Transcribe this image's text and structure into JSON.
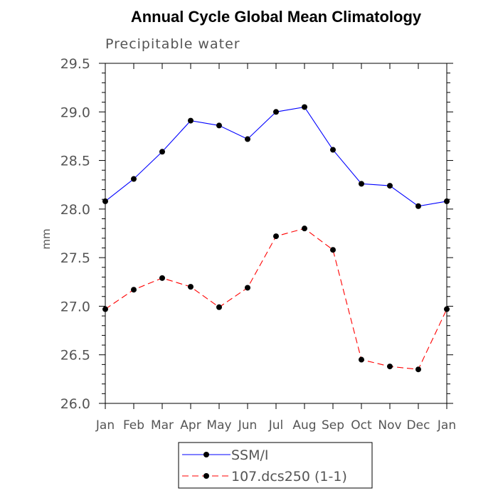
{
  "chart_data": {
    "type": "line",
    "title": "Annual Cycle Global Mean Climatology",
    "subtitle": "Precipitable water",
    "xlabel": "",
    "ylabel": "mm",
    "categories": [
      "Jan",
      "Feb",
      "Mar",
      "Apr",
      "May",
      "Jun",
      "Jul",
      "Aug",
      "Sep",
      "Oct",
      "Nov",
      "Dec",
      "Jan"
    ],
    "ylim": [
      26.0,
      29.5
    ],
    "yticks": [
      "26.0",
      "26.5",
      "27.0",
      "27.5",
      "28.0",
      "28.5",
      "29.0",
      "29.5"
    ],
    "yminor_step": 0.1,
    "grid": false,
    "legend_position": "bottom",
    "series": [
      {
        "name": "SSM/I",
        "color": "#0000ff",
        "dash": "solid",
        "values": [
          28.08,
          28.31,
          28.59,
          28.91,
          28.86,
          28.72,
          29.0,
          29.05,
          28.61,
          28.26,
          28.24,
          28.03,
          28.08
        ]
      },
      {
        "name": "107.dcs250 (1-1)",
        "color": "#ff0000",
        "dash": "dashed",
        "values": [
          26.97,
          27.17,
          27.29,
          27.2,
          26.99,
          27.19,
          27.72,
          27.8,
          27.58,
          26.45,
          26.38,
          26.35,
          26.97
        ]
      }
    ]
  }
}
